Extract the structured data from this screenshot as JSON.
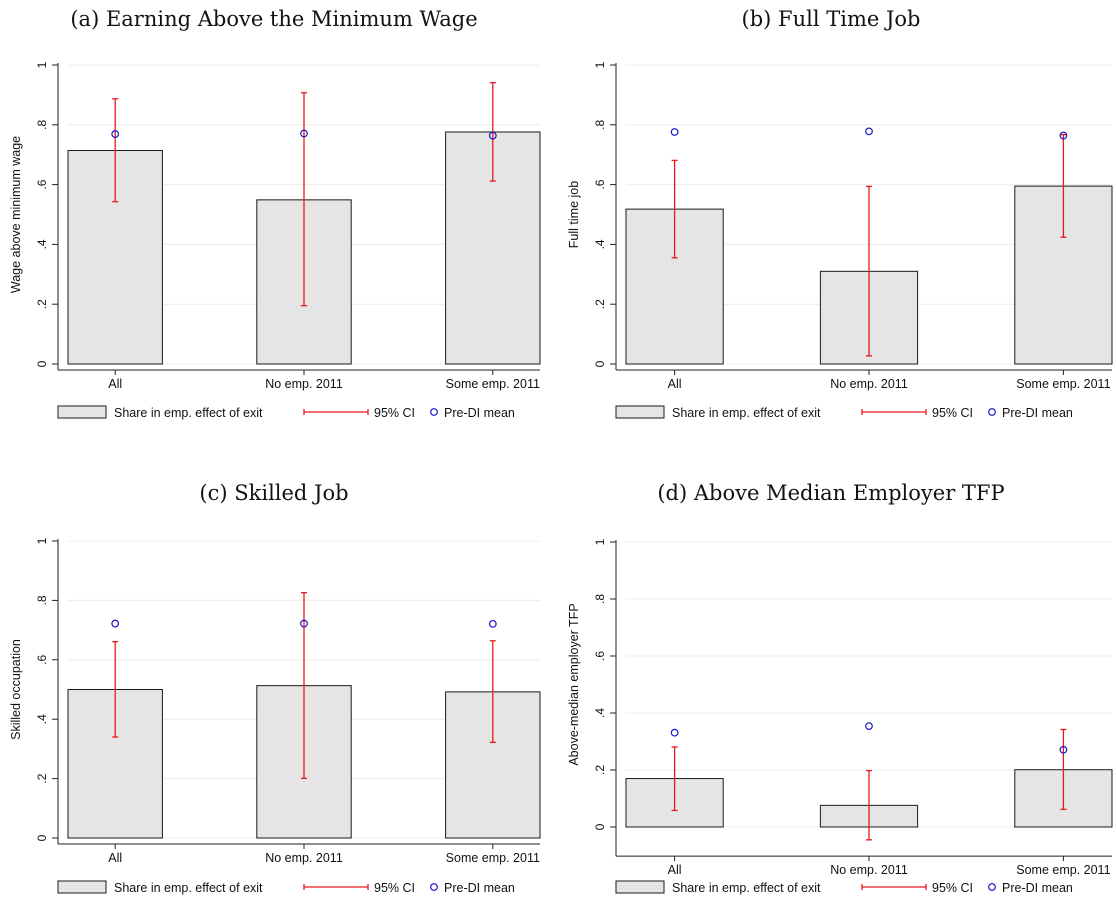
{
  "colors": {
    "bar_fill": "#e5e5e5",
    "bar_stroke": "#1a1a1a",
    "ci": "#e8191c",
    "mean_marker": "#1a17c9",
    "grid": "#ececec"
  },
  "legend": {
    "bar_label": "Share in emp. effect of exit",
    "ci_label": "95% CI",
    "mean_label": "Pre-DI mean"
  },
  "chart_data": [
    {
      "type": "bar",
      "title": "(a) Earning Above the Minimum Wage",
      "ylabel": "Wage above minimum wage",
      "categories": [
        "All",
        "No emp. 2011",
        "Some emp. 2011"
      ],
      "ylim": [
        0,
        1
      ],
      "yticks": [
        0,
        0.2,
        0.4,
        0.6,
        0.8,
        1
      ],
      "ytick_labels": [
        "0",
        ".2",
        ".4",
        ".6",
        ".8",
        "1"
      ],
      "grid": true,
      "legend_position": "bottom",
      "series": [
        {
          "name": "Share in emp. effect of exit",
          "values": [
            0.714,
            0.549,
            0.776
          ]
        },
        {
          "name": "95% CI",
          "lower": [
            0.543,
            0.195,
            0.612
          ],
          "upper": [
            0.887,
            0.907,
            0.941
          ]
        },
        {
          "name": "Pre-DI mean",
          "values": [
            0.769,
            0.771,
            0.764
          ]
        }
      ]
    },
    {
      "type": "bar",
      "title": "(b) Full Time Job",
      "ylabel": "Full time job",
      "categories": [
        "All",
        "No emp. 2011",
        "Some emp. 2011"
      ],
      "ylim": [
        0,
        1
      ],
      "yticks": [
        0,
        0.2,
        0.4,
        0.6,
        0.8,
        1
      ],
      "ytick_labels": [
        "0",
        ".2",
        ".4",
        ".6",
        ".8",
        "1"
      ],
      "grid": true,
      "legend_position": "bottom",
      "series": [
        {
          "name": "Share in emp. effect of exit",
          "values": [
            0.518,
            0.31,
            0.595
          ]
        },
        {
          "name": "95% CI",
          "lower": [
            0.355,
            0.027,
            0.424
          ],
          "upper": [
            0.681,
            0.594,
            0.767
          ]
        },
        {
          "name": "Pre-DI mean",
          "values": [
            0.776,
            0.778,
            0.764
          ]
        }
      ]
    },
    {
      "type": "bar",
      "title": "(c) Skilled Job",
      "ylabel": "Skilled occupation",
      "categories": [
        "All",
        "No emp. 2011",
        "Some emp. 2011"
      ],
      "ylim": [
        0,
        1
      ],
      "yticks": [
        0,
        0.2,
        0.4,
        0.6,
        0.8,
        1
      ],
      "ytick_labels": [
        "0",
        ".2",
        ".4",
        ".6",
        ".8",
        "1"
      ],
      "grid": true,
      "legend_position": "bottom",
      "series": [
        {
          "name": "Share in emp. effect of exit",
          "values": [
            0.5,
            0.513,
            0.492
          ]
        },
        {
          "name": "95% CI",
          "lower": [
            0.34,
            0.201,
            0.322
          ],
          "upper": [
            0.661,
            0.826,
            0.664
          ]
        },
        {
          "name": "Pre-DI mean",
          "values": [
            0.722,
            0.722,
            0.721
          ]
        }
      ]
    },
    {
      "type": "bar",
      "title": "(d) Above Median Employer TFP",
      "ylabel": "Above-median employer TFP",
      "categories": [
        "All",
        "No emp. 2011",
        "Some emp. 2011"
      ],
      "ylim": [
        -0.06,
        1
      ],
      "yticks": [
        0,
        0.2,
        0.4,
        0.6,
        0.8,
        1
      ],
      "ytick_labels": [
        "0",
        ".2",
        ".4",
        ".6",
        ".8",
        "1"
      ],
      "grid": true,
      "legend_position": "bottom",
      "series": [
        {
          "name": "Share in emp. effect of exit",
          "values": [
            0.17,
            0.076,
            0.201
          ]
        },
        {
          "name": "95% CI",
          "lower": [
            0.058,
            -0.045,
            0.062
          ],
          "upper": [
            0.281,
            0.198,
            0.342
          ]
        },
        {
          "name": "Pre-DI mean",
          "values": [
            0.331,
            0.354,
            0.271
          ]
        }
      ]
    }
  ]
}
